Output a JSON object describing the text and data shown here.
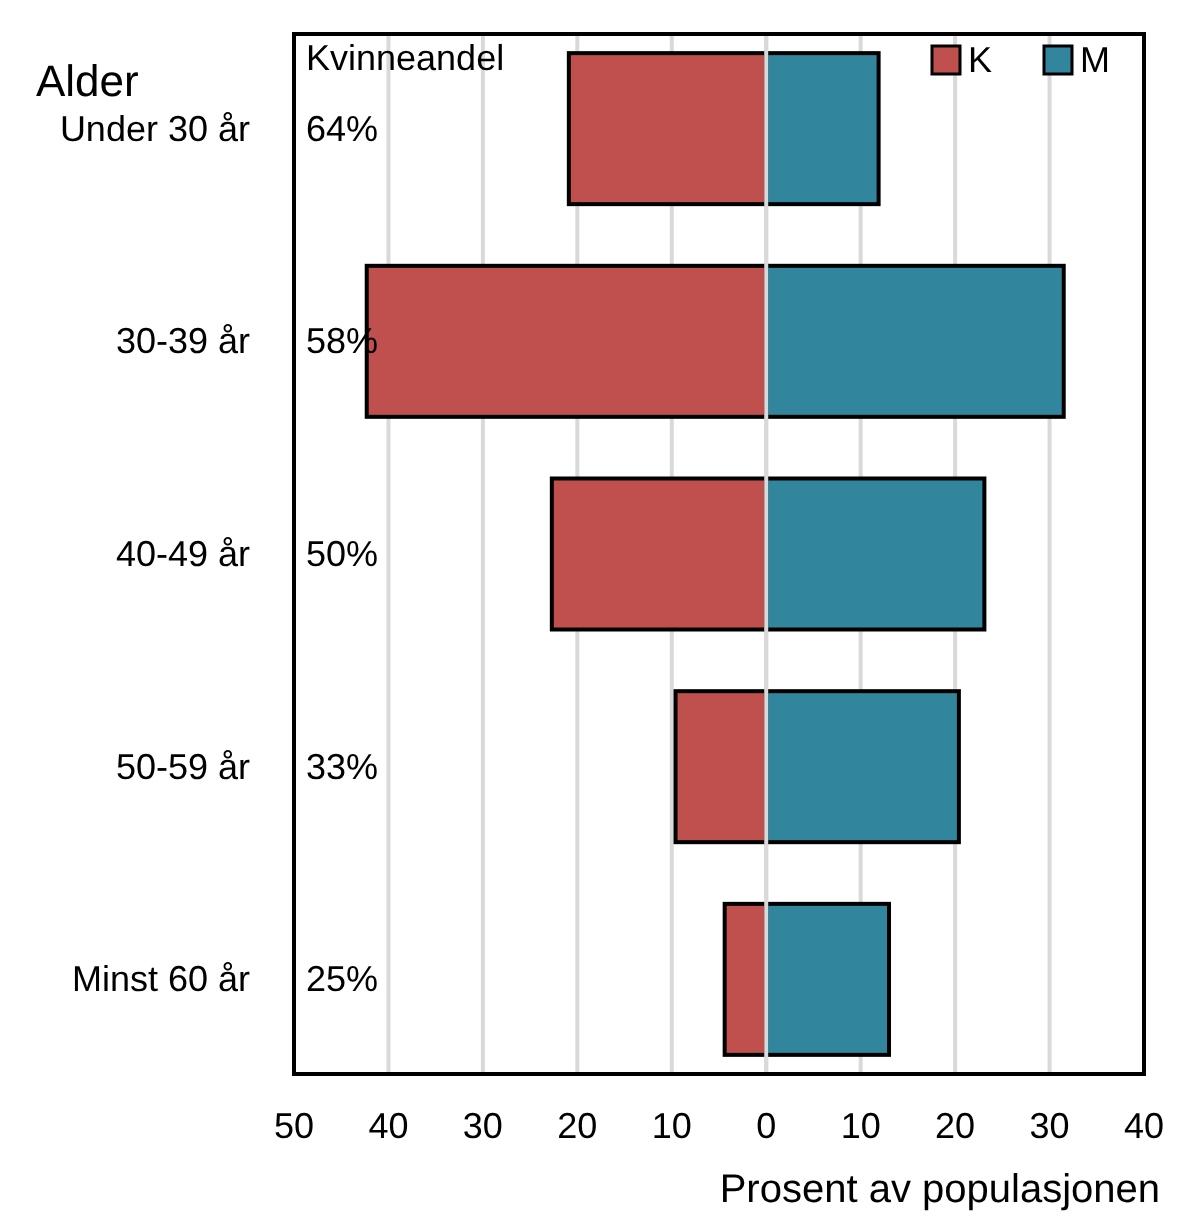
{
  "chart_data": {
    "type": "bar",
    "orientation": "horizontal",
    "stacked": true,
    "ylabel": "Alder",
    "xlabel": "Prosent av populasjonen",
    "categories": [
      "Under 30 år",
      "30-39 år",
      "40-49 år",
      "50-59 år",
      "Minst 60 år"
    ],
    "series": [
      {
        "name": "K",
        "color": "#c0504d",
        "values": [
          -20.9,
          -42.3,
          -22.7,
          -9.6,
          -4.4
        ]
      },
      {
        "name": "M",
        "color": "#31859c",
        "values": [
          11.9,
          31.5,
          23.1,
          20.4,
          13.0
        ]
      }
    ],
    "xlim": [
      -50,
      40
    ],
    "xticks": [
      {
        "value": -50,
        "label": "50"
      },
      {
        "value": -40,
        "label": "40"
      },
      {
        "value": -30,
        "label": "30"
      },
      {
        "value": -20,
        "label": "20"
      },
      {
        "value": -10,
        "label": "10"
      },
      0,
      10,
      20,
      30,
      40
    ],
    "grid": "x",
    "legend": "top right",
    "annotations": [
      "Kvinneandel",
      "64%",
      "58%",
      "50%",
      "33%",
      "25%"
    ]
  }
}
